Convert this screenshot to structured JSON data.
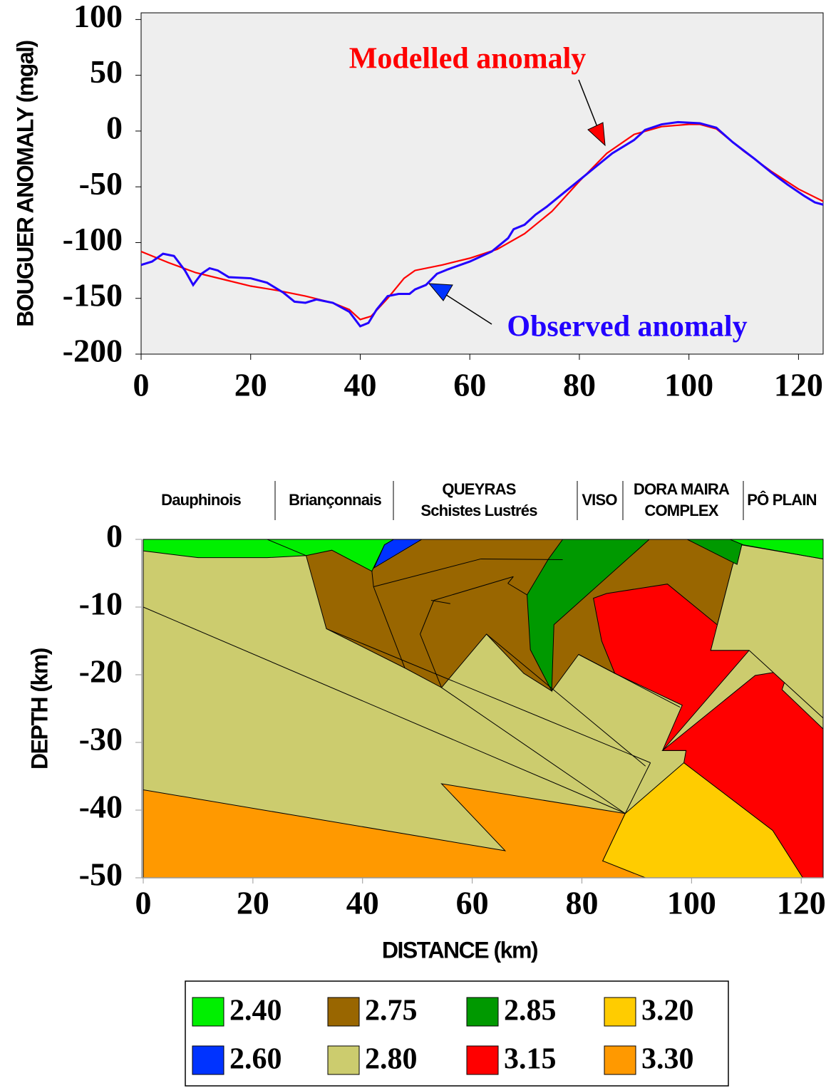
{
  "chart_data": [
    {
      "type": "line",
      "ylabel": "BOUGUER ANOMALY (mgal)",
      "xlim": [
        0,
        124.5
      ],
      "ylim": [
        -200,
        106
      ],
      "xticks": [
        0,
        20,
        40,
        60,
        80,
        100,
        120
      ],
      "yticks": [
        100,
        50,
        0,
        -50,
        -100,
        -150,
        -200
      ],
      "series": [
        {
          "name": "Modelled anomaly",
          "color": "#ff0000",
          "x": [
            0,
            5,
            10,
            15,
            20,
            25,
            30,
            35,
            38,
            40,
            42,
            45,
            48,
            50,
            55,
            60,
            65,
            70,
            75,
            80,
            85,
            90,
            95,
            100,
            102,
            105,
            110,
            115,
            120,
            124.5
          ],
          "values": [
            -108,
            -118,
            -127,
            -133,
            -139,
            -143,
            -148,
            -154,
            -160,
            -169,
            -166,
            -150,
            -132,
            -125,
            -120,
            -114,
            -106,
            -92,
            -72,
            -45,
            -20,
            -3,
            4,
            6,
            6,
            2,
            -18,
            -36,
            -52,
            -63
          ]
        },
        {
          "name": "Observed anomaly",
          "color": "#2200ff",
          "x": [
            0,
            2,
            4,
            6,
            8,
            9.5,
            11,
            12.5,
            14,
            16,
            20,
            23,
            26,
            28,
            30,
            32,
            35,
            38,
            40,
            41.5,
            43,
            45,
            47,
            49,
            50,
            52,
            54,
            56,
            60,
            64,
            67,
            68,
            70,
            72,
            74,
            76,
            78,
            80,
            83,
            86,
            90,
            92,
            95,
            98,
            102,
            105,
            108,
            112,
            115,
            118,
            121,
            123,
            124.5
          ],
          "values": [
            -120,
            -117,
            -110,
            -112,
            -125,
            -138,
            -128,
            -123,
            -125,
            -131,
            -132,
            -136,
            -145,
            -153,
            -154,
            -151,
            -154,
            -162,
            -175,
            -172,
            -160,
            -148,
            -146,
            -146,
            -142,
            -138,
            -128,
            -124,
            -117,
            -108,
            -96,
            -88,
            -84,
            -75,
            -68,
            -60,
            -52,
            -44,
            -32,
            -20,
            -8,
            1,
            6,
            8,
            7,
            3,
            -10,
            -25,
            -37,
            -48,
            -58,
            -64,
            -66
          ]
        }
      ]
    },
    {
      "type": "cross-section",
      "xlabel": "DISTANCE (km)",
      "ylabel": "DEPTH (km)",
      "xlim": [
        0,
        124
      ],
      "ylim": [
        -50,
        0
      ],
      "xticks": [
        0,
        20,
        40,
        60,
        80,
        100,
        120
      ],
      "yticks": [
        0,
        -10,
        -20,
        -30,
        -40,
        -50
      ],
      "regions": [
        [
          "Dauphinois"
        ],
        [
          "Briançonnais"
        ],
        [
          "QUEYRAS",
          "Schistes Lustrés"
        ],
        [
          "VISO"
        ],
        [
          "DORA MAIRA",
          "COMPLEX"
        ],
        [
          "PÔ PLAIN"
        ]
      ],
      "legend": [
        {
          "density": 2.4,
          "label": "2.40",
          "color": "#00f000"
        },
        {
          "density": 2.75,
          "label": "2.75",
          "color": "#996600"
        },
        {
          "density": 2.85,
          "label": "2.85",
          "color": "#009900"
        },
        {
          "density": 3.2,
          "label": "3.20",
          "color": "#ffcc00"
        },
        {
          "density": 2.6,
          "label": "2.60",
          "color": "#0033ff"
        },
        {
          "density": 2.8,
          "label": "2.80",
          "color": "#cccc6e"
        },
        {
          "density": 3.15,
          "label": "3.15",
          "color": "#ff0000"
        },
        {
          "density": 3.3,
          "label": "3.30",
          "color": "#ff9900"
        }
      ],
      "polygons": [
        {
          "density": 2.8,
          "points": [
            [
              0,
              0
            ],
            [
              124,
              0
            ],
            [
              124,
              -50
            ],
            [
              0,
              -50
            ]
          ]
        },
        {
          "density": 3.3,
          "points": [
            [
              0,
              -37
            ],
            [
              66,
              -46
            ],
            [
              54.4,
              -36.1
            ],
            [
              87.9,
              -40.5
            ],
            [
              83.8,
              -47.5
            ],
            [
              97,
              -50
            ],
            [
              0,
              -50
            ]
          ]
        },
        {
          "density": 3.2,
          "points": [
            [
              87.9,
              -40.5
            ],
            [
              98.6,
              -33
            ],
            [
              114.8,
              -43
            ],
            [
              120.3,
              -50
            ],
            [
              91.6,
              -50
            ],
            [
              83.8,
              -47.5
            ]
          ]
        },
        {
          "density": 2.75,
          "points": [
            [
              23,
              0
            ],
            [
              109.4,
              0
            ],
            [
              107.5,
              -3.8
            ],
            [
              103.5,
              -16.4
            ],
            [
              86,
              -19.8
            ],
            [
              79.4,
              -17
            ],
            [
              74.5,
              -22.4
            ],
            [
              69.4,
              -19.8
            ],
            [
              62.6,
              -14
            ],
            [
              54.4,
              -21.9
            ],
            [
              47.7,
              -19
            ],
            [
              33.4,
              -13.2
            ],
            [
              29.7,
              -2.4
            ]
          ]
        },
        {
          "density": 3.15,
          "points": [
            [
              82.1,
              -8.7
            ],
            [
              84.5,
              -8
            ],
            [
              95.6,
              -6.6
            ],
            [
              105.1,
              -12.9
            ],
            [
              103.5,
              -16.4
            ],
            [
              110.5,
              -16.4
            ],
            [
              94.7,
              -31.2
            ],
            [
              98.3,
              -24.5
            ],
            [
              86,
              -19.8
            ],
            [
              83.6,
              -15
            ]
          ]
        },
        {
          "density": 3.15,
          "points": [
            [
              94.7,
              -31.2
            ],
            [
              111.6,
              -20.1
            ],
            [
              117.7,
              -19.3
            ],
            [
              116.5,
              -22.2
            ],
            [
              124,
              -28
            ],
            [
              124,
              -50
            ],
            [
              120.3,
              -50
            ],
            [
              114.8,
              -43
            ],
            [
              98.6,
              -33
            ],
            [
              99,
              -31.2
            ]
          ]
        },
        {
          "density": 2.8,
          "points": [
            [
              109,
              -0.8
            ],
            [
              124,
              -2.9
            ],
            [
              124,
              -26.4
            ],
            [
              110.5,
              -16.4
            ],
            [
              103.5,
              -16.4
            ],
            [
              107.5,
              -3.8
            ]
          ]
        },
        {
          "density": 2.85,
          "points": [
            [
              76.5,
              0
            ],
            [
              92.3,
              0
            ],
            [
              74.9,
              -12.6
            ],
            [
              74.5,
              -22.4
            ],
            [
              70.6,
              -16.3
            ],
            [
              70,
              -8.2
            ],
            [
              73.9,
              -2.9
            ]
          ]
        },
        {
          "density": 2.85,
          "points": [
            [
              99.2,
              0
            ],
            [
              109.4,
              0
            ],
            [
              108.3,
              -3.7
            ]
          ]
        },
        {
          "density": 2.4,
          "points": [
            [
              0,
              0
            ],
            [
              45.7,
              0
            ],
            [
              44,
              -0.8
            ],
            [
              41.7,
              -4.7
            ],
            [
              34.4,
              -1.6
            ],
            [
              29.7,
              -2.4
            ],
            [
              22.6,
              -2.7
            ],
            [
              10,
              -2.7
            ],
            [
              0,
              -1.7
            ]
          ]
        },
        {
          "density": 2.4,
          "points": [
            [
              107,
              0
            ],
            [
              124,
              0
            ],
            [
              124,
              -2.9
            ],
            [
              109.4,
              -0.8
            ]
          ]
        },
        {
          "density": 2.6,
          "points": [
            [
              45.7,
              0
            ],
            [
              50.8,
              0
            ],
            [
              42.1,
              -4.2
            ],
            [
              44,
              -0.8
            ]
          ]
        }
      ],
      "lines": [
        [
          [
            0,
            -10
          ],
          [
            88,
            -40.5
          ]
        ],
        [
          [
            33.4,
            -13.2
          ],
          [
            92.5,
            -33
          ]
        ],
        [
          [
            54.4,
            -21.9
          ],
          [
            87.9,
            -40.5
          ]
        ],
        [
          [
            79.4,
            -17
          ],
          [
            97.9,
            -24.8
          ]
        ],
        [
          [
            62.6,
            -14
          ],
          [
            91.6,
            -33.5
          ]
        ],
        [
          [
            92.5,
            -33
          ],
          [
            87.9,
            -40.5
          ]
        ],
        [
          [
            94.7,
            -31.2
          ],
          [
            99,
            -31.2
          ]
        ],
        [
          [
            41.7,
            -4.7
          ],
          [
            42,
            -7
          ]
        ],
        [
          [
            42,
            -7
          ],
          [
            61.5,
            -2.9
          ]
        ],
        [
          [
            61.5,
            -2.9
          ],
          [
            76.5,
            -3
          ]
        ],
        [
          [
            42,
            -7
          ],
          [
            47.7,
            -19
          ]
        ],
        [
          [
            52.5,
            -9
          ],
          [
            56,
            -9.5
          ]
        ],
        [
          [
            50.5,
            -14
          ],
          [
            54.4,
            -21.9
          ]
        ],
        [
          [
            50.5,
            -14
          ],
          [
            53,
            -9
          ]
        ],
        [
          [
            53,
            -9
          ],
          [
            67.5,
            -5.5
          ]
        ],
        [
          [
            67.5,
            -5.5
          ],
          [
            66.5,
            -6.5
          ]
        ],
        [
          [
            66.5,
            -6.5
          ],
          [
            70,
            -8.2
          ]
        ],
        [
          [
            22.6,
            0
          ],
          [
            29.7,
            -2.4
          ]
        ]
      ]
    }
  ]
}
